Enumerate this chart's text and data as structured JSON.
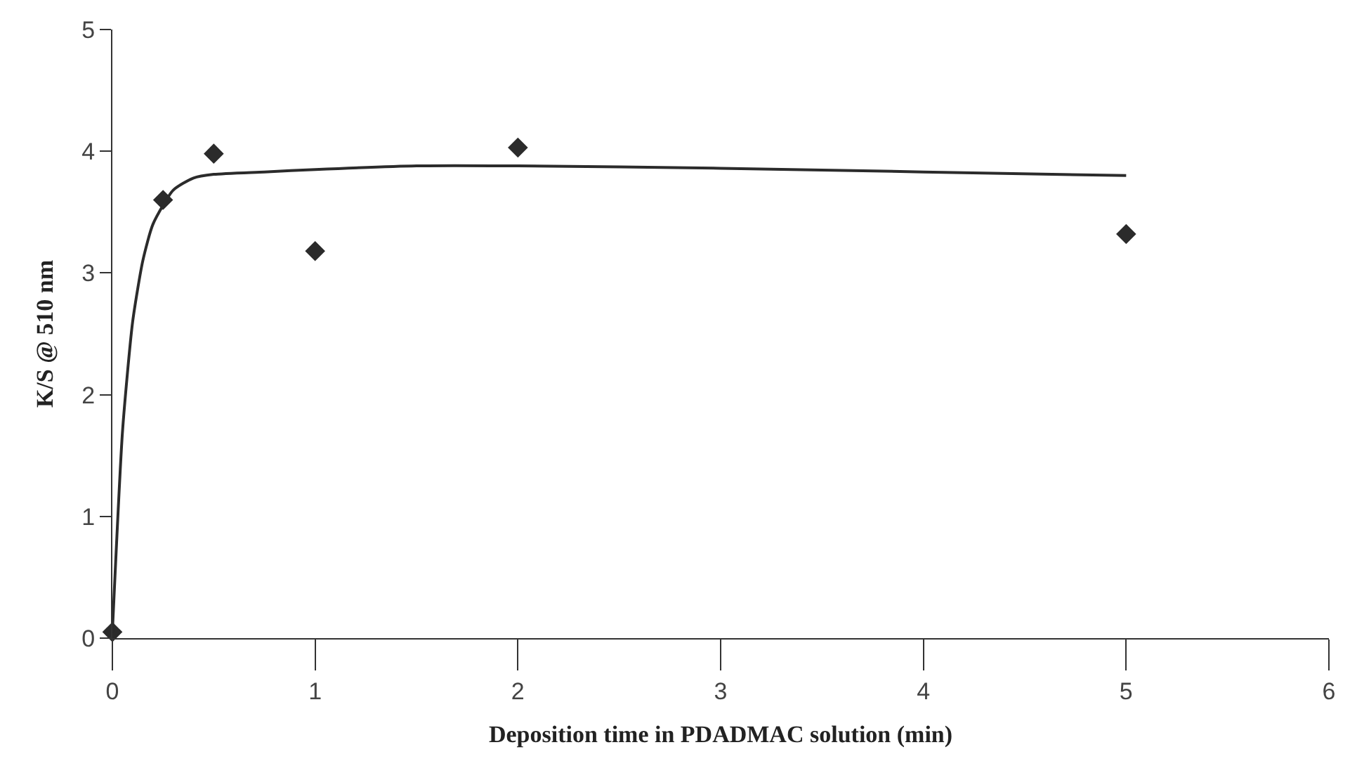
{
  "chart_data": {
    "type": "scatter",
    "xlabel": "Deposition time in PDADMAC solution (min)",
    "ylabel": "K/S @ 510 nm",
    "xlim": [
      0,
      6
    ],
    "xticks": [
      0,
      1,
      2,
      3,
      4,
      5,
      6
    ],
    "ylim": [
      0,
      5
    ],
    "yticks": [
      0,
      1,
      2,
      3,
      4,
      5
    ],
    "series": [
      {
        "color": "#2b2b2b",
        "marker": "diamond",
        "x": [
          0,
          0.25,
          0.5,
          1,
          2,
          5
        ],
        "values": [
          0.05,
          3.6,
          3.98,
          3.18,
          4.03,
          3.32
        ]
      },
      {
        "type": "line",
        "color": "#2b2b2b",
        "marker": "none",
        "line_style": "solid",
        "x": [
          0,
          0.05,
          0.1,
          0.15,
          0.2,
          0.3,
          0.4,
          0.5,
          0.75,
          1,
          1.5,
          2,
          3,
          4,
          5
        ],
        "values": [
          0.05,
          1.7,
          2.6,
          3.1,
          3.4,
          3.68,
          3.78,
          3.81,
          3.83,
          3.85,
          3.88,
          3.88,
          3.86,
          3.83,
          3.8
        ]
      }
    ]
  }
}
